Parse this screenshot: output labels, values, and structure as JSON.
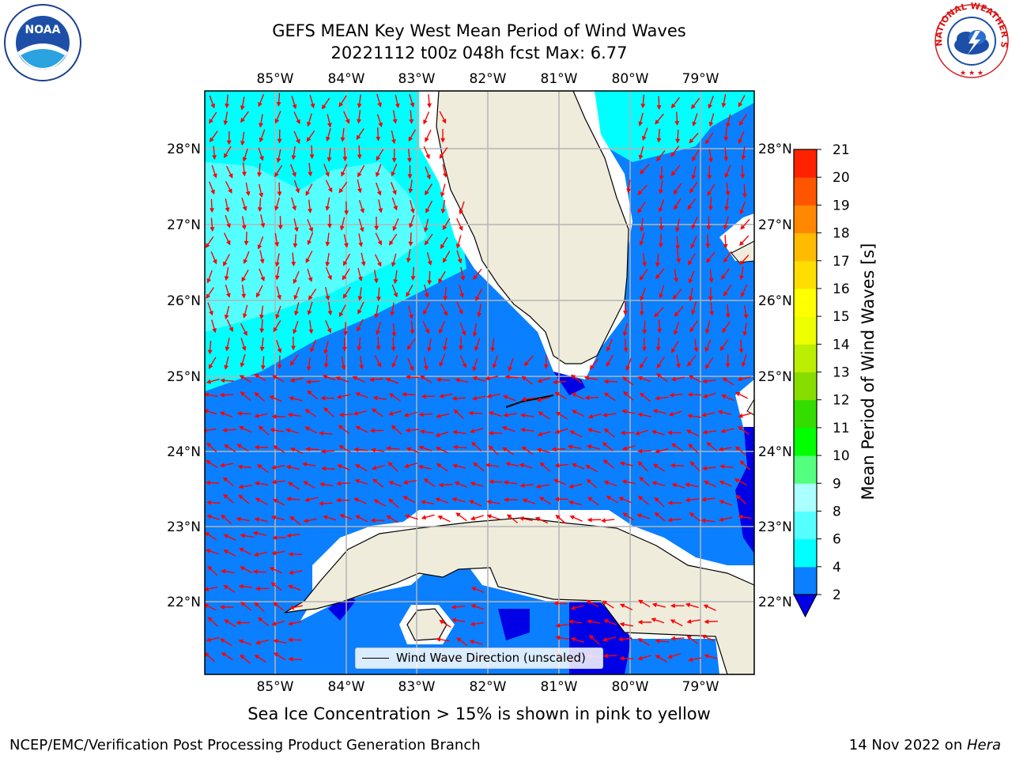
{
  "header": {
    "title_line1": "GEFS MEAN Key West Mean Period of Wind Waves",
    "title_line2": "20221112 t00z 048h fcst   Max: 6.77"
  },
  "logos": {
    "left": "noaa-logo",
    "left_text": "NOAA",
    "right": "nws-logo",
    "right_text": "NATIONAL WEATHER SERVICE"
  },
  "map": {
    "lon_labels": [
      "85°W",
      "84°W",
      "83°W",
      "82°W",
      "81°W",
      "80°W",
      "79°W"
    ],
    "lat_labels": [
      "28°N",
      "27°N",
      "26°N",
      "25°N",
      "24°N",
      "23°N",
      "22°N"
    ],
    "colors": {
      "land": "#efecdc",
      "band_2_4": "#0a7fff",
      "band_4_6": "#00ffff",
      "band_6_8": "#55ffff",
      "below_2": "#0000e6",
      "arrows": "#ff0000",
      "grid": "#b4b4b4"
    }
  },
  "legend": {
    "label": "Wind Wave Direction (unscaled)"
  },
  "colorbar": {
    "label": "Mean Period of Wind Waves [s]",
    "ticks": [
      "2",
      "4",
      "6",
      "8",
      "9",
      "10",
      "11",
      "12",
      "13",
      "14",
      "15",
      "16",
      "17",
      "18",
      "19",
      "20",
      "21"
    ],
    "colors": [
      "#0a7fff",
      "#00ffff",
      "#55ffff",
      "#aaffff",
      "#55ff80",
      "#00ff00",
      "#33dd00",
      "#88dd00",
      "#bbee00",
      "#eeff00",
      "#ffff00",
      "#ffdd00",
      "#ffbb00",
      "#ff8800",
      "#ff5500",
      "#ff2200"
    ]
  },
  "footer": {
    "subtitle": "Sea Ice Concentration > 15% is shown in pink to yellow",
    "left": "NCEP/EMC/Verification Post Processing Product Generation Branch",
    "right_date": "14 Nov 2022 on ",
    "right_host": "Hera"
  }
}
